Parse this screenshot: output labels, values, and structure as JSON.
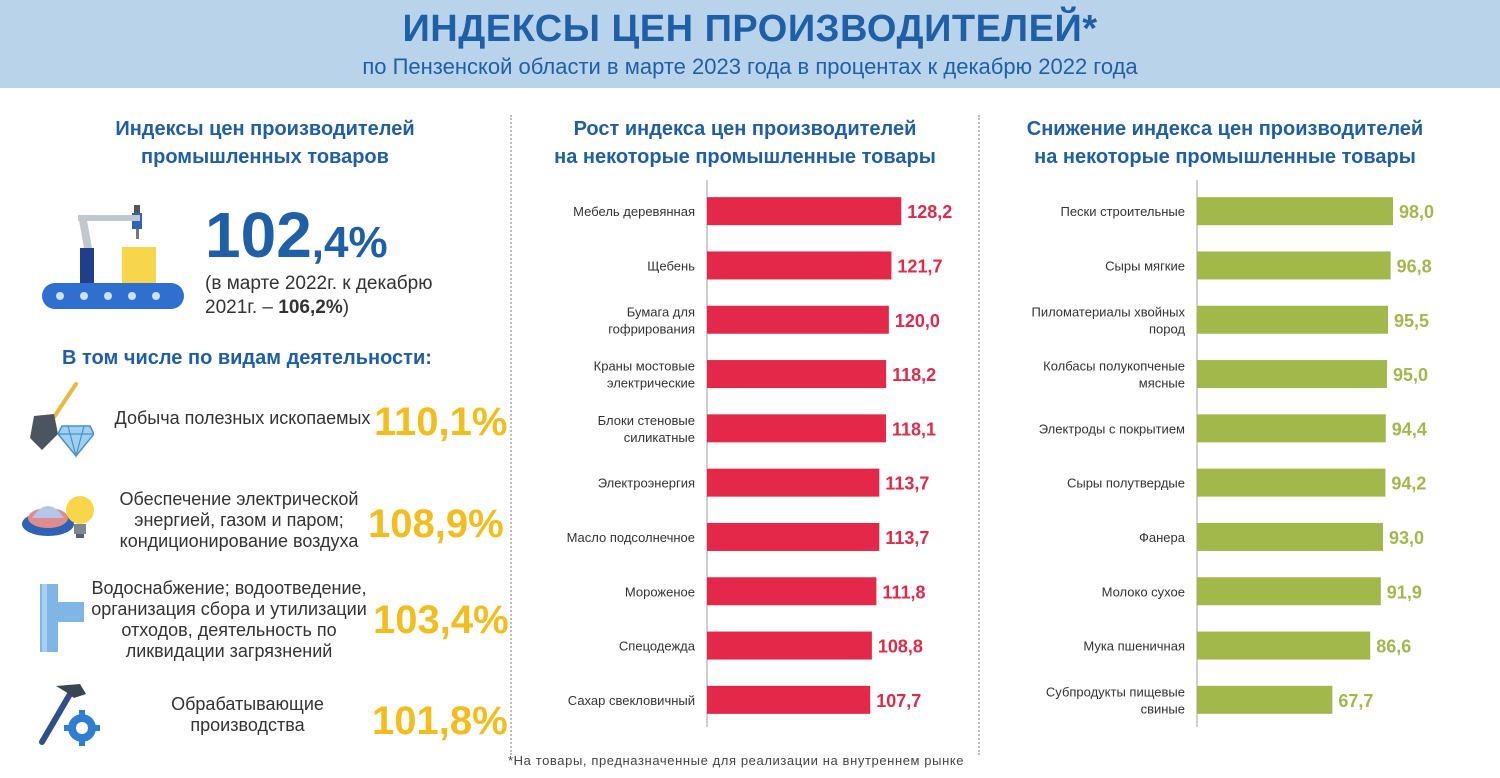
{
  "header": {
    "title": "ИНДЕКСЫ ЦЕН ПРОИЗВОДИТЕЛЕЙ*",
    "subtitle": "по Пензенской области в марте 2023 года в процентах к декабрю 2022 года"
  },
  "left": {
    "title_line1": "Индексы цен производителей",
    "title_line2": "промышленных товаров",
    "big_int": "102",
    "big_frac": ",4%",
    "note_text": "(в марте 2022г.  к декабрю 2021г. – ",
    "note_value": "106,2%",
    "note_close": ")",
    "subheading": "В том числе по видам деятельности:",
    "activities": [
      {
        "label": "Добыча полезных ископаемых",
        "value": "110,1%"
      },
      {
        "label": "Обеспечение электрической энергией, газом и паром; кондиционирование воздуха",
        "value": "108,9%"
      },
      {
        "label": "Водоснабжение; водоотведение, организация сбора и утилизации отходов, деятельность по ликвидации загрязнений",
        "value": "103,4%"
      },
      {
        "label": "Обрабатывающие производства",
        "value": "101,8%"
      }
    ]
  },
  "colors": {
    "blue": "#1f5fa8",
    "red": "#e3284a",
    "green": "#a3b84a",
    "yellow": "#f2bd1d"
  },
  "chart_data": [
    {
      "type": "bar",
      "orientation": "horizontal",
      "title": "Рост индекса цен производителей на некоторые промышленные товары",
      "title_line1": "Рост индекса цен производителей",
      "title_line2": "на некоторые промышленные товары",
      "categories": [
        "Мебель деревянная",
        "Щебень",
        "Бумага для гофрирования",
        "Краны мостовые электрические",
        "Блоки стеновые силикатные",
        "Электроэнергия",
        "Масло подсолнечное",
        "Мороженое",
        "Спецодежда",
        "Сахар свекловичный"
      ],
      "labels_lines": [
        [
          "Мебель деревянная"
        ],
        [
          "Щебень"
        ],
        [
          "Бумага для",
          "гофрирования"
        ],
        [
          "Краны мостовые",
          "электрические"
        ],
        [
          "Блоки стеновые",
          "силикатные"
        ],
        [
          "Электроэнергия"
        ],
        [
          "Масло подсолнечное"
        ],
        [
          "Мороженое"
        ],
        [
          "Спецодежда"
        ],
        [
          "Сахар свекловичный"
        ]
      ],
      "values": [
        128.2,
        121.7,
        120.0,
        118.2,
        118.1,
        113.7,
        113.7,
        111.8,
        108.8,
        107.7
      ],
      "value_labels": [
        "128,2",
        "121,7",
        "120,0",
        "118,2",
        "118,1",
        "113,7",
        "113,7",
        "111,8",
        "108,8",
        "107,7"
      ],
      "xlim": [
        0,
        130
      ]
    },
    {
      "type": "bar",
      "orientation": "horizontal",
      "title": "Снижение индекса цен производителей на некоторые промышленные товары",
      "title_line1": "Снижение индекса цен производителей",
      "title_line2": "на некоторые промышленные товары",
      "categories": [
        "Пески строительные",
        "Сыры мягкие",
        "Пиломатериалы хвойных пород",
        "Колбасы полукопченые мясные",
        "Электроды с покрытием",
        "Сыры полутвердые",
        "Фанера",
        "Молоко сухое",
        "Мука пшеничная",
        "Субпродукты пищевые свиные"
      ],
      "labels_lines": [
        [
          "Пески строительные"
        ],
        [
          "Сыры мягкие"
        ],
        [
          "Пиломатериалы хвойных",
          "пород"
        ],
        [
          "Колбасы полукопченые",
          "мясные"
        ],
        [
          "Электроды с покрытием"
        ],
        [
          "Сыры полутвердые"
        ],
        [
          "Фанера"
        ],
        [
          "Молоко сухое"
        ],
        [
          "Мука пшеничная"
        ],
        [
          "Субпродукты пищевые",
          "свиные"
        ]
      ],
      "values": [
        98.0,
        96.8,
        95.5,
        95.0,
        94.4,
        94.2,
        93.0,
        91.9,
        86.6,
        67.7
      ],
      "value_labels": [
        "98,0",
        "96,8",
        "95,5",
        "95,0",
        "94,4",
        "94,2",
        "93,0",
        "91,9",
        "86,6",
        "67,7"
      ],
      "xlim": [
        0,
        100
      ]
    }
  ],
  "footnote": "*На товары, предназначенные для реализации на внутреннем рынке"
}
